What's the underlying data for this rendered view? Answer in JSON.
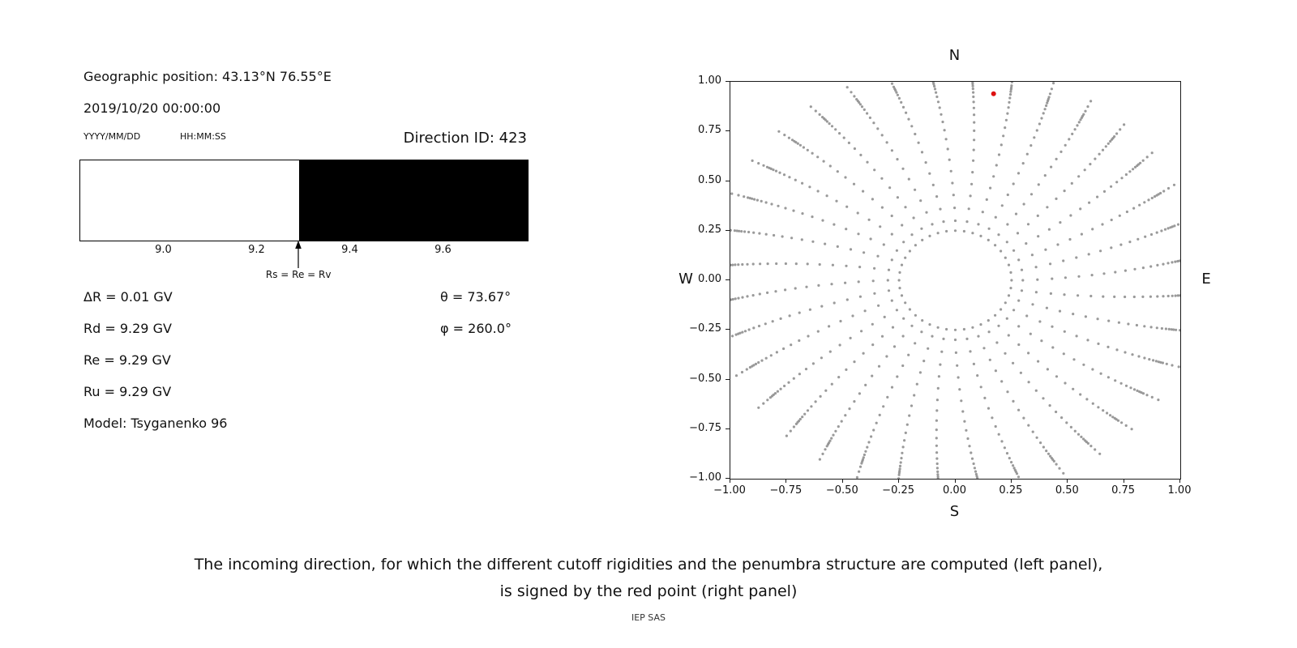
{
  "left_panel": {
    "geographic_position": "Geographic position: 43.13°N 76.55°E",
    "datetime": "2019/10/20 00:00:00",
    "date_format_label": "YYYY/MM/DD",
    "time_format_label": "HH:MM:SS",
    "direction_id": "Direction ID: 423",
    "arrow_label": "Rs = Re = Rv",
    "values": {
      "delta_r": "ΔR = 0.01 GV",
      "rd": "Rd = 9.29 GV",
      "re": "Re = 9.29 GV",
      "ru": "Ru = 9.29 GV",
      "theta": "θ = 73.67°",
      "phi": "φ = 260.0°",
      "model": "Model: Tsyganenko 96"
    }
  },
  "right_panel": {
    "compass": {
      "north": "N",
      "south": "S",
      "west": "W",
      "east": "E"
    }
  },
  "caption": {
    "line1": "The incoming direction, for which the different cutoff rigidities and the penumbra structure are computed (left panel),",
    "line2": "is signed by the red point (right panel)"
  },
  "footer": "IEP SAS",
  "chart_data": [
    {
      "type": "bar",
      "name": "penumbra-structure",
      "x_range": [
        8.82,
        9.78
      ],
      "xticks": [
        9.0,
        9.2,
        9.4,
        9.6
      ],
      "bar_background": "#ffffff",
      "black_color": "#000000",
      "black_from": 9.29,
      "black_to": 9.78,
      "marker_value": 9.29,
      "marker_label": "Rs = Re = Rv"
    },
    {
      "type": "scatter",
      "name": "incoming-directions-map",
      "xlim": [
        -1,
        1
      ],
      "ylim": [
        -1,
        1
      ],
      "xticks": [
        -1.0,
        -0.75,
        -0.5,
        -0.25,
        0.0,
        0.25,
        0.5,
        0.75,
        1.0
      ],
      "yticks": [
        1.0,
        0.75,
        0.5,
        0.25,
        0.0,
        -0.25,
        -0.5,
        -0.75,
        -1.0
      ],
      "compass": {
        "top": "N",
        "bottom": "S",
        "left": "W",
        "right": "E"
      },
      "grid_dots": {
        "color": "#8f8f8f",
        "n_spokes": 36,
        "spoke_step_deg": 10,
        "inner_ring_radius": 0.25,
        "inner_ring_count": 40,
        "spoke_radii": [
          0.3,
          0.365,
          0.43,
          0.49,
          0.55,
          0.608,
          0.662,
          0.712,
          0.758,
          0.8,
          0.838,
          0.872,
          0.902,
          0.928,
          0.95,
          0.968,
          0.982,
          0.993,
          1.002,
          1.012,
          1.03,
          1.055,
          1.085
        ],
        "curvature_deg": 8
      },
      "red_point": {
        "x": 0.17,
        "y": 0.94,
        "color": "#dd1111",
        "label": "selected incoming direction"
      }
    }
  ]
}
